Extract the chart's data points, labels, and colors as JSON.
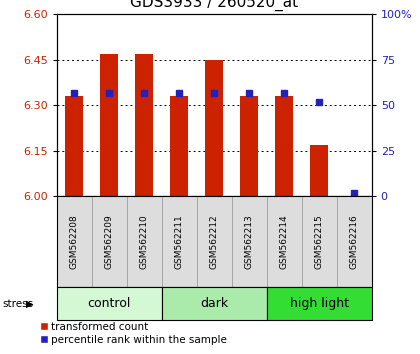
{
  "title": "GDS3933 / 260520_at",
  "samples": [
    "GSM562208",
    "GSM562209",
    "GSM562210",
    "GSM562211",
    "GSM562212",
    "GSM562213",
    "GSM562214",
    "GSM562215",
    "GSM562216"
  ],
  "bar_values": [
    6.33,
    6.47,
    6.47,
    6.33,
    6.45,
    6.33,
    6.33,
    6.17,
    6.0
  ],
  "percentile_values": [
    57,
    57,
    57,
    57,
    57,
    57,
    57,
    52,
    2
  ],
  "bar_bottom": 6.0,
  "ylim": [
    6.0,
    6.6
  ],
  "yticks": [
    6.0,
    6.15,
    6.3,
    6.45,
    6.6
  ],
  "right_yticks": [
    0,
    25,
    50,
    75,
    100
  ],
  "right_ylim": [
    0,
    100
  ],
  "bar_color": "#cc2200",
  "percentile_color": "#2222bb",
  "groups": [
    {
      "label": "control",
      "start": 0,
      "end": 3,
      "color": "#d4f7d4"
    },
    {
      "label": "dark",
      "start": 3,
      "end": 6,
      "color": "#aaeaaa"
    },
    {
      "label": "high light",
      "start": 6,
      "end": 9,
      "color": "#33dd33"
    }
  ],
  "stress_label": "stress",
  "bar_color_red": "#cc2200",
  "right_axis_color": "#2222bb",
  "bg_color": "#ffffff",
  "sample_bg": "#dddddd",
  "bar_width": 0.5,
  "title_fontsize": 11,
  "tick_fontsize": 8,
  "sample_fontsize": 6.5,
  "group_fontsize": 9,
  "legend_fontsize": 7.5
}
